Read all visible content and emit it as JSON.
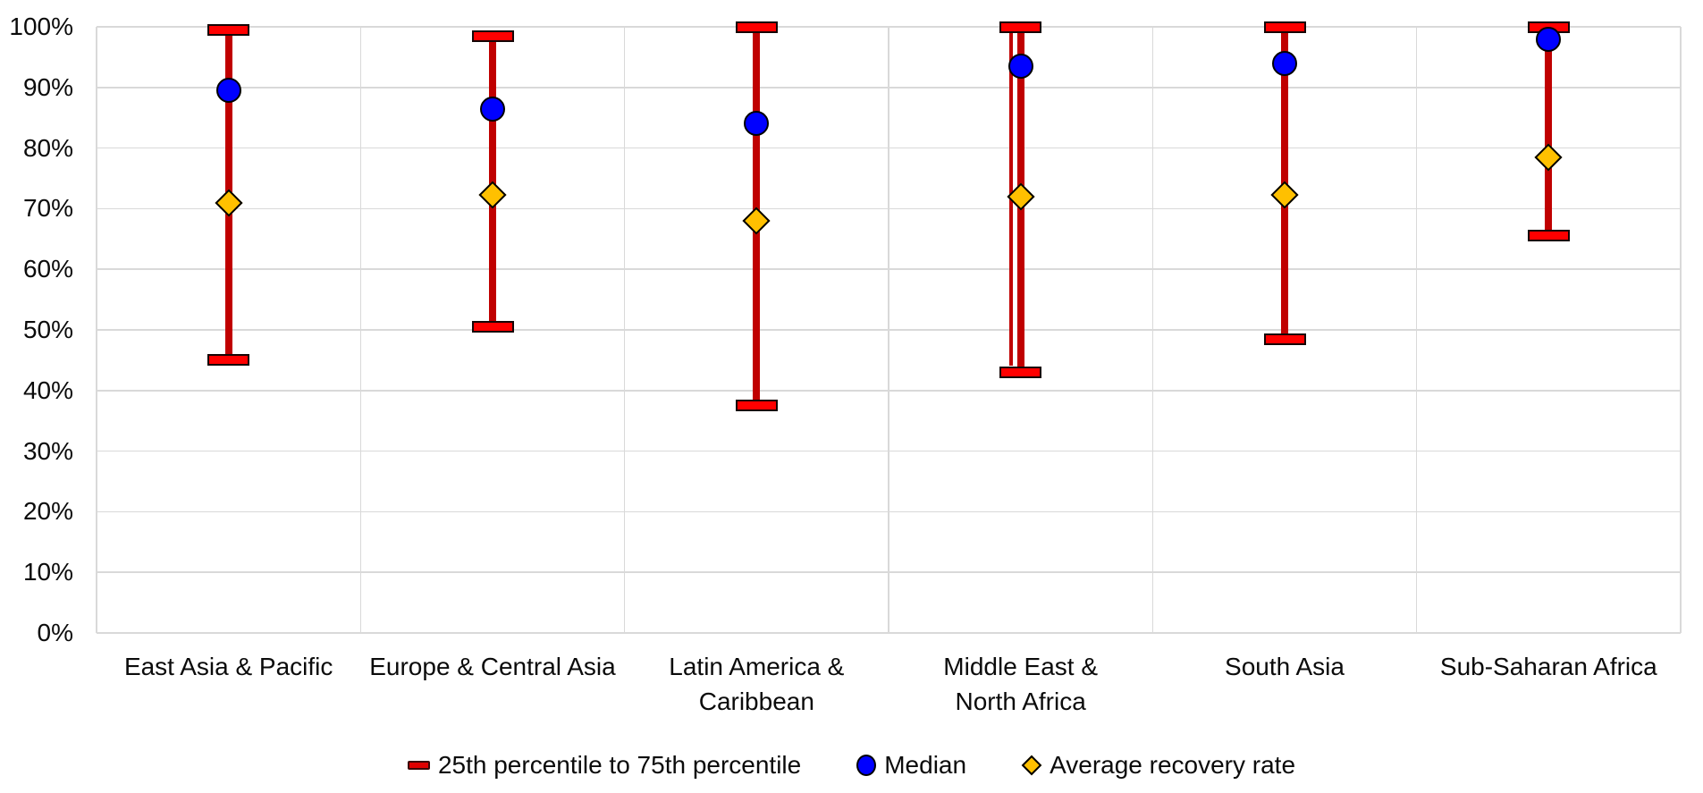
{
  "chart_data": {
    "type": "scatter",
    "subtype": "range-bars-with-point-markers",
    "title": "",
    "xlabel": "",
    "ylabel": "",
    "ylim": [
      0,
      100
    ],
    "yticks": [
      "0%",
      "10%",
      "20%",
      "30%",
      "40%",
      "50%",
      "60%",
      "70%",
      "80%",
      "90%",
      "100%"
    ],
    "grid": true,
    "legend_position": "bottom",
    "categories": [
      "East Asia & Pacific",
      "Europe & Central Asia",
      "Latin America &\nCaribbean",
      "Middle East &\nNorth Africa",
      "South Asia",
      "Sub-Saharan Africa"
    ],
    "series": [
      {
        "name": "25th percentile to 75th percentile",
        "type": "range",
        "low": [
          45.0,
          50.5,
          37.5,
          43.0,
          48.5,
          65.5
        ],
        "high": [
          99.5,
          98.5,
          100.0,
          100.0,
          100.0,
          100.0
        ]
      },
      {
        "name": "Median",
        "type": "point",
        "marker": "circle",
        "values": [
          89.5,
          86.5,
          84.0,
          93.5,
          94.0,
          98.0
        ]
      },
      {
        "name": "Average recovery rate",
        "type": "point",
        "marker": "diamond",
        "values": [
          71.0,
          72.3,
          68.0,
          72.0,
          72.3,
          78.5
        ]
      }
    ],
    "render_hints": {
      "double_line_category_index": 3
    }
  },
  "colors": {
    "background": "#FFFFFF",
    "gridline": "#D9D9D9",
    "axis_text": "#0B0B0B",
    "error_bar_line": "#C00000",
    "error_bar_cap_fill": "#FF0000",
    "median_fill": "#0000FF",
    "average_fill": "#FFC000",
    "marker_border": "#000000"
  }
}
